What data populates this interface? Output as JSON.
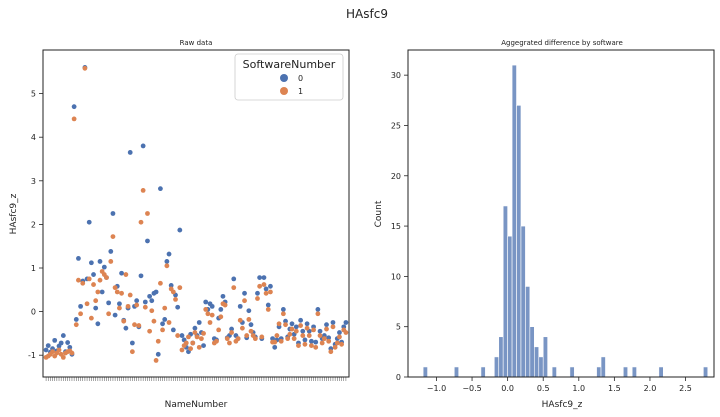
{
  "suptitle": "HAsfc9",
  "chart_data": [
    {
      "type": "scatter",
      "title": "Raw data",
      "xlabel": "NameNumber",
      "ylabel": "HAsfc9_z",
      "ylim": [
        -1.5,
        6.0
      ],
      "yticks": [
        -1,
        0,
        1,
        2,
        3,
        4,
        5
      ],
      "grid": false,
      "legend": {
        "title": "SoftwareNumber",
        "placement": "top-right",
        "entries": [
          "0",
          "1"
        ]
      },
      "colors": {
        "0": "#4c72b0",
        "1": "#dd8452"
      },
      "x_index_range": [
        1,
        140
      ],
      "series": [
        {
          "name": "0",
          "color": "#4c72b0",
          "values": [
            -0.88,
            -0.78,
            -0.93,
            -0.85,
            -0.66,
            -0.9,
            -0.79,
            -0.72,
            -0.55,
            -0.92,
            -0.71,
            -0.82,
            -0.98,
            4.7,
            -0.18,
            1.22,
            0.12,
            0.7,
            5.6,
            0.75,
            2.05,
            1.12,
            0.85,
            0.08,
            -0.28,
            1.15,
            0.45,
            1.02,
            0.78,
            0.2,
            1.38,
            2.25,
            -0.08,
            0.58,
            0.18,
            0.88,
            -0.2,
            -0.38,
            0.08,
            3.65,
            -0.72,
            0.12,
            0.25,
            -0.35,
            0.82,
            3.8,
            0.22,
            1.62,
            0.35,
            0.25,
            0.42,
            0.45,
            -0.98,
            2.82,
            -0.28,
            -0.18,
            1.15,
            1.32,
            0.6,
            -0.42,
            0.38,
            0.1,
            1.87,
            -0.55,
            -0.65,
            -0.82,
            -0.92,
            -0.52,
            -0.72,
            -0.38,
            -0.55,
            -0.25,
            -0.48,
            -0.78,
            0.22,
            0.05,
            0.18,
            0.12,
            -0.62,
            -0.65,
            -0.15,
            0.05,
            0.35,
            0.22,
            -0.6,
            -0.55,
            -0.4,
            0.75,
            -0.55,
            -0.62,
            0.12,
            -0.25,
            0.42,
            -0.6,
            0.02,
            -0.3,
            -0.48,
            -0.58,
            0.42,
            0.78,
            -0.62,
            0.78,
            0.52,
            0.15,
            0.58,
            -0.62,
            -0.82,
            -0.65,
            -0.35,
            -0.62,
            0.05,
            -0.22,
            -0.58,
            -0.4,
            -0.28,
            -0.52,
            -0.35,
            -0.72,
            -0.2,
            -0.45,
            -0.65,
            -0.28,
            -0.45,
            -0.68,
            -0.35,
            -0.7,
            0.05,
            -0.45,
            -0.62,
            -0.55,
            -0.3,
            -0.6,
            -0.85,
            -0.25,
            -0.75,
            -0.62,
            -0.48,
            -0.7,
            -0.35,
            -0.25
          ]
        },
        {
          "name": "1",
          "color": "#dd8452",
          "values": [
            -1.05,
            -1.02,
            -0.98,
            -0.92,
            -1.02,
            -0.95,
            -0.88,
            -0.98,
            -1.05,
            -0.95,
            -0.92,
            -0.9,
            -0.95,
            4.42,
            -0.3,
            0.72,
            -0.05,
            0.65,
            5.58,
            0.18,
            0.75,
            -0.15,
            0.62,
            0.25,
            0.45,
            0.72,
            0.92,
            0.85,
            0.78,
            -0.05,
            1.15,
            1.72,
            0.55,
            0.45,
            0.08,
            0.42,
            -0.22,
            0.85,
            0.12,
            0.38,
            -0.92,
            -0.3,
            0.15,
            -0.32,
            2.05,
            2.78,
            0.1,
            2.25,
            -0.45,
            0.02,
            -0.22,
            -1.12,
            -0.68,
            0.65,
            -0.42,
            0.08,
            1.05,
            -0.25,
            0.52,
            0.45,
            0.28,
            -0.55,
            0.55,
            -0.88,
            -0.78,
            -0.72,
            -0.58,
            -0.85,
            -0.72,
            -0.48,
            -0.58,
            -0.82,
            -0.62,
            -0.5,
            0.05,
            -0.05,
            -0.25,
            -0.08,
            -0.72,
            -0.68,
            -0.42,
            -0.12,
            0.18,
            0.15,
            -0.62,
            -0.72,
            -0.48,
            0.55,
            -0.68,
            -0.62,
            -0.2,
            -0.38,
            0.25,
            -0.55,
            -0.18,
            -0.45,
            -0.55,
            -0.62,
            0.3,
            0.58,
            -0.58,
            0.62,
            0.42,
            0.05,
            0.45,
            -0.7,
            -0.7,
            -0.55,
            -0.28,
            -0.68,
            -0.05,
            -0.3,
            -0.62,
            -0.52,
            -0.4,
            -0.62,
            -0.45,
            -0.78,
            -0.32,
            -0.55,
            -0.75,
            -0.38,
            -0.55,
            -0.78,
            -0.42,
            -0.82,
            -0.05,
            -0.55,
            -0.72,
            -0.62,
            -0.4,
            -0.68,
            -0.92,
            -0.35,
            -0.82,
            -0.72,
            -0.58,
            -0.75,
            -0.42,
            -0.48
          ]
        }
      ]
    },
    {
      "type": "bar",
      "subtype": "histogram",
      "title": "Aggegrated difference by software",
      "xlabel": "HAsfc9_z",
      "ylabel": "Count",
      "xlim": [
        -1.4,
        2.9
      ],
      "ylim": [
        0,
        32.5
      ],
      "xticks": [
        -1.0,
        -0.5,
        0.0,
        0.5,
        1.0,
        1.5,
        2.0,
        2.5
      ],
      "yticks": [
        0,
        5,
        10,
        15,
        20,
        25,
        30
      ],
      "bin_width": 0.0625,
      "color": "#4c72b0",
      "bins": [
        {
          "x": -1.1875,
          "count": 1
        },
        {
          "x": -0.75,
          "count": 1
        },
        {
          "x": -0.375,
          "count": 1
        },
        {
          "x": -0.1875,
          "count": 2
        },
        {
          "x": -0.125,
          "count": 4
        },
        {
          "x": -0.0625,
          "count": 17
        },
        {
          "x": 0.0,
          "count": 14
        },
        {
          "x": 0.0625,
          "count": 31
        },
        {
          "x": 0.125,
          "count": 27
        },
        {
          "x": 0.1875,
          "count": 15
        },
        {
          "x": 0.25,
          "count": 9
        },
        {
          "x": 0.3125,
          "count": 5
        },
        {
          "x": 0.375,
          "count": 3
        },
        {
          "x": 0.4375,
          "count": 2
        },
        {
          "x": 0.5,
          "count": 4
        },
        {
          "x": 0.625,
          "count": 1
        },
        {
          "x": 0.875,
          "count": 1
        },
        {
          "x": 1.25,
          "count": 1
        },
        {
          "x": 1.3125,
          "count": 2
        },
        {
          "x": 1.625,
          "count": 1
        },
        {
          "x": 1.75,
          "count": 1
        },
        {
          "x": 2.125,
          "count": 1
        },
        {
          "x": 2.75,
          "count": 1
        }
      ]
    }
  ]
}
